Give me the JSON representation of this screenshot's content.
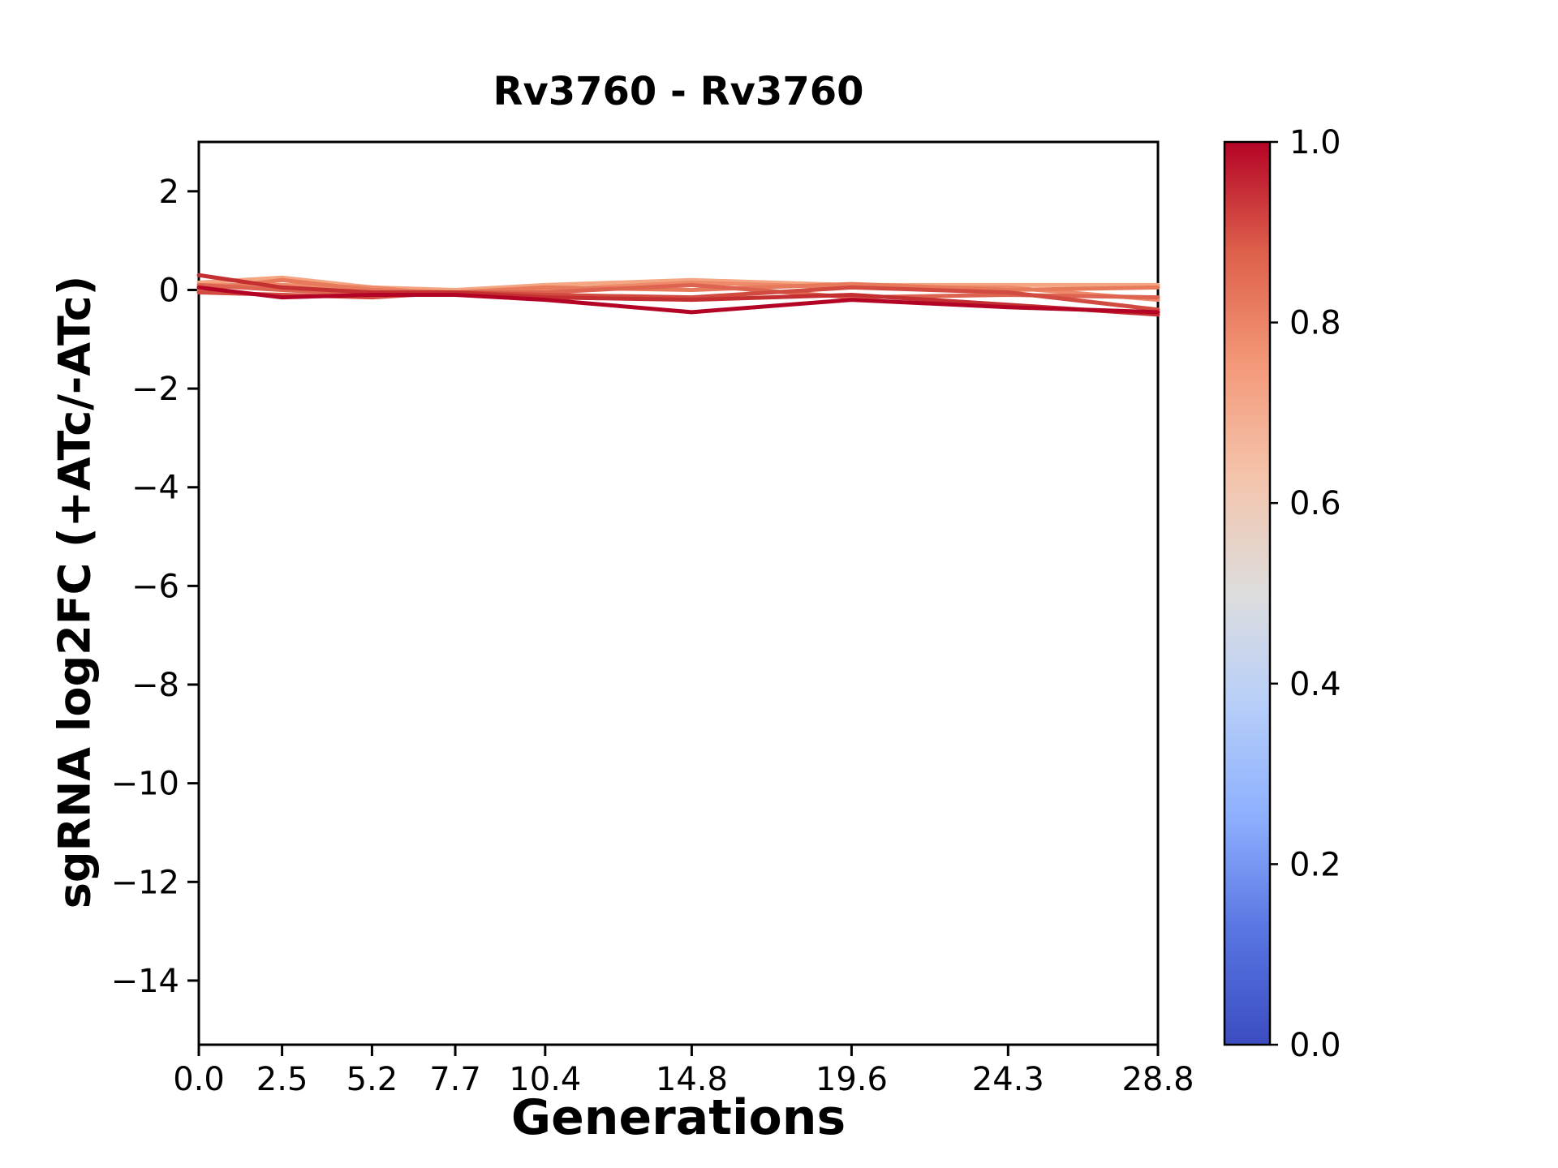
{
  "chart_data": {
    "type": "line",
    "title": "Rv3760 - Rv3760",
    "xlabel": "Generations",
    "ylabel": "sgRNA log2FC (+ATc/-ATc)",
    "x": [
      0.0,
      2.5,
      5.2,
      7.7,
      10.4,
      14.8,
      19.6,
      24.3,
      28.8
    ],
    "x_tick_labels": [
      "0.0",
      "2.5",
      "5.2",
      "7.7",
      "10.4",
      "14.8",
      "19.6",
      "24.3",
      "28.8"
    ],
    "xlim": [
      0,
      28.8
    ],
    "y_ticks": [
      2,
      0,
      -2,
      -4,
      -6,
      -8,
      -10,
      -12,
      -14
    ],
    "y_tick_labels": [
      "2",
      "0",
      "−2",
      "−4",
      "−6",
      "−8",
      "−10",
      "−12",
      "−14"
    ],
    "ylim": [
      -15.3,
      3.0
    ],
    "grid": false,
    "legend_position": "none",
    "series": [
      {
        "colormap_value": 0.7,
        "color": "#f4a582",
        "values": [
          0.15,
          0.25,
          0.05,
          0.0,
          0.1,
          0.2,
          0.1,
          0.1,
          0.1
        ]
      },
      {
        "colormap_value": 0.75,
        "color": "#ee8a6a",
        "values": [
          0.1,
          0.1,
          0.05,
          -0.1,
          0.0,
          0.15,
          0.05,
          0.05,
          -0.2
        ]
      },
      {
        "colormap_value": 0.8,
        "color": "#e67a5b",
        "values": [
          0.0,
          0.2,
          0.0,
          -0.05,
          0.05,
          0.0,
          0.12,
          0.0,
          0.05
        ]
      },
      {
        "colormap_value": 0.85,
        "color": "#dd6450",
        "values": [
          0.1,
          0.0,
          -0.1,
          -0.05,
          -0.05,
          0.1,
          -0.15,
          -0.1,
          -0.15
        ]
      },
      {
        "colormap_value": 0.9,
        "color": "#d24b40",
        "values": [
          -0.05,
          -0.1,
          -0.15,
          -0.05,
          -0.1,
          -0.15,
          0.05,
          -0.05,
          -0.4
        ]
      },
      {
        "colormap_value": 0.95,
        "color": "#c43032",
        "values": [
          0.3,
          0.05,
          -0.05,
          -0.05,
          -0.15,
          -0.2,
          -0.1,
          -0.3,
          -0.5
        ]
      },
      {
        "colormap_value": 1.0,
        "color": "#b40426",
        "values": [
          0.05,
          -0.15,
          -0.1,
          -0.1,
          -0.2,
          -0.45,
          -0.2,
          -0.35,
          -0.45
        ]
      }
    ],
    "colorbar": {
      "colormap": "coolwarm",
      "tick_labels": [
        "1.0",
        "0.8",
        "0.6",
        "0.4",
        "0.2",
        "0.0"
      ],
      "tick_values": [
        1.0,
        0.8,
        0.6,
        0.4,
        0.2,
        0.0
      ],
      "gradient_stops": [
        {
          "offset": 0.0,
          "color": "#3b4cc0"
        },
        {
          "offset": 0.13,
          "color": "#5977e3"
        },
        {
          "offset": 0.25,
          "color": "#8caffe"
        },
        {
          "offset": 0.38,
          "color": "#b8cff9"
        },
        {
          "offset": 0.5,
          "color": "#dddddd"
        },
        {
          "offset": 0.63,
          "color": "#f4c4ab"
        },
        {
          "offset": 0.75,
          "color": "#f49a7b"
        },
        {
          "offset": 0.88,
          "color": "#dd5f4b"
        },
        {
          "offset": 1.0,
          "color": "#b40426"
        }
      ]
    },
    "axis_color": "#000000",
    "background_color": "#ffffff"
  }
}
